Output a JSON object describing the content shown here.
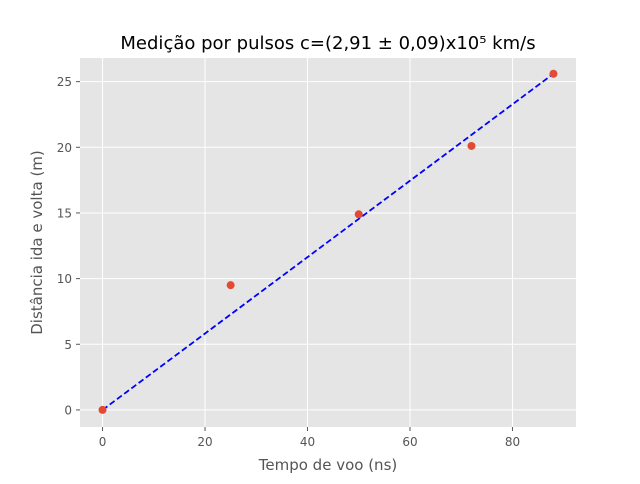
{
  "chart_data": {
    "type": "scatter",
    "title": "Medição por pulsos c=(2,91 ± 0,09)x10⁵ km/s",
    "xlabel": "Tempo de voo (ns)",
    "ylabel": "Distância ida e volta (m)",
    "xlim": [
      -4.4,
      92.4
    ],
    "ylim": [
      -1.3,
      26.8
    ],
    "xticks": [
      0,
      20,
      40,
      60,
      80
    ],
    "yticks": [
      0,
      5,
      10,
      15,
      20,
      25
    ],
    "grid": true,
    "style": "ggplot",
    "series": [
      {
        "kind": "points",
        "color": "#E24A33",
        "x": [
          0,
          25,
          50,
          72,
          88
        ],
        "y": [
          0,
          9.5,
          14.9,
          20.1,
          25.6
        ]
      },
      {
        "kind": "fit-line",
        "color": "#0000FF",
        "linestyle": "dashed",
        "x": [
          0,
          88
        ],
        "y": [
          0,
          25.6
        ]
      }
    ]
  }
}
